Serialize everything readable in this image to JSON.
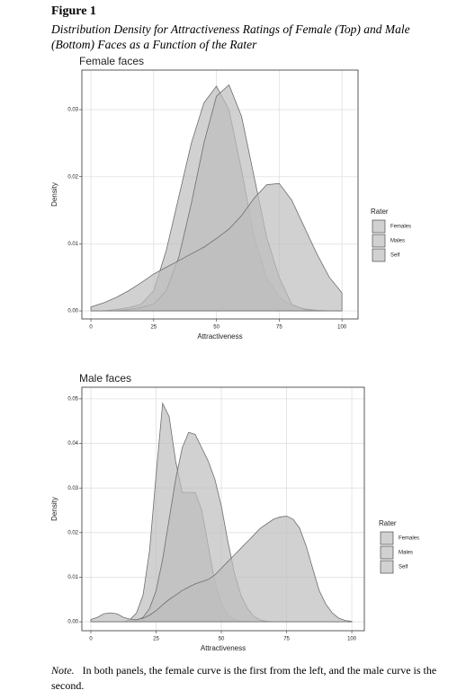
{
  "figure": {
    "label": "Figure 1",
    "caption": "Distribution Density for Attractiveness Ratings of Female (Top) and Male (Bottom) Faces as a Function of the Rater",
    "note_label": "Note.",
    "note": "In both panels, the female curve is the first from the left, and the male curve is the second."
  },
  "chart_data": [
    {
      "type": "area",
      "title": "Female faces",
      "x_label": "Attractiveness",
      "y_label": "Density",
      "legend_title": "Rater",
      "x": [
        0,
        5,
        10,
        15,
        20,
        25,
        30,
        35,
        40,
        45,
        50,
        55,
        60,
        65,
        70,
        75,
        80,
        85,
        90,
        95,
        100
      ],
      "series": [
        {
          "name": "Females",
          "color": "#bdbdbd",
          "values": [
            0,
            0,
            0.0002,
            0.0005,
            0.001,
            0.003,
            0.009,
            0.017,
            0.025,
            0.031,
            0.0335,
            0.03,
            0.021,
            0.011,
            0.005,
            0.002,
            0.0008,
            0.0003,
            0.0001,
            0,
            0
          ]
        },
        {
          "name": "Males",
          "color": "#bdbdbd",
          "values": [
            0,
            0,
            0,
            0.0002,
            0.0005,
            0.001,
            0.003,
            0.008,
            0.016,
            0.025,
            0.032,
            0.0337,
            0.029,
            0.02,
            0.011,
            0.005,
            0.001,
            0.0002,
            0,
            0,
            0
          ]
        },
        {
          "name": "Self",
          "color": "#bdbdbd",
          "values": [
            0.0006,
            0.0012,
            0.002,
            0.003,
            0.0042,
            0.0055,
            0.0065,
            0.0075,
            0.0085,
            0.0095,
            0.0108,
            0.0122,
            0.0142,
            0.0168,
            0.0188,
            0.019,
            0.0165,
            0.0125,
            0.0085,
            0.005,
            0.0027
          ]
        }
      ],
      "xlim": [
        -3.6,
        106.4
      ],
      "ylim": [
        -0.0012,
        0.0359
      ],
      "xticks": [
        0,
        25,
        50,
        75,
        100
      ],
      "yticks": [
        {
          "value": 0,
          "label": "0.00"
        },
        {
          "value": 0.01,
          "label": "0.01"
        },
        {
          "value": 0.02,
          "label": "0.02"
        },
        {
          "value": 0.03,
          "label": "0.03"
        }
      ],
      "grid": true
    },
    {
      "type": "area",
      "title": "Male faces",
      "x_label": "Attractiveness",
      "y_label": "Density",
      "legend_title": "Rater",
      "x": [
        0,
        2.5,
        5,
        7.5,
        10,
        12.5,
        15,
        17.5,
        20,
        22.5,
        25,
        27.5,
        30,
        32.5,
        35,
        37.5,
        40,
        42.5,
        45,
        47.5,
        50,
        52.5,
        55,
        57.5,
        60,
        62.5,
        65,
        67.5,
        70,
        72.5,
        75,
        77.5,
        80,
        82.5,
        85,
        87.5,
        90,
        92.5,
        95,
        97.5,
        100
      ],
      "series": [
        {
          "name": "Females",
          "color": "#bdbdbd",
          "values": [
            0,
            0,
            0,
            0,
            0,
            0,
            0.0005,
            0.002,
            0.006,
            0.016,
            0.033,
            0.049,
            0.046,
            0.036,
            0.029,
            0.029,
            0.029,
            0.025,
            0.017,
            0.009,
            0.004,
            0.0015,
            0.0005,
            0.0001,
            0,
            0,
            0,
            0,
            0,
            0,
            0,
            0,
            0,
            0,
            0,
            0,
            0,
            0,
            0,
            0,
            0
          ]
        },
        {
          "name": "Males",
          "color": "#bdbdbd",
          "values": [
            0,
            0,
            0,
            0,
            0,
            0,
            0,
            0.0003,
            0.001,
            0.003,
            0.007,
            0.014,
            0.023,
            0.032,
            0.039,
            0.0425,
            0.042,
            0.039,
            0.036,
            0.032,
            0.026,
            0.018,
            0.011,
            0.006,
            0.003,
            0.0012,
            0.0004,
            0.0001,
            0,
            0,
            0,
            0,
            0,
            0,
            0,
            0,
            0,
            0,
            0,
            0,
            0
          ]
        },
        {
          "name": "Self",
          "color": "#bdbdbd",
          "values": [
            0.0005,
            0.001,
            0.0018,
            0.002,
            0.0018,
            0.001,
            0.0006,
            0.0005,
            0.0008,
            0.0015,
            0.0025,
            0.0038,
            0.005,
            0.006,
            0.007,
            0.0078,
            0.0085,
            0.009,
            0.0095,
            0.0105,
            0.012,
            0.0135,
            0.015,
            0.0165,
            0.018,
            0.0195,
            0.021,
            0.022,
            0.023,
            0.0235,
            0.0237,
            0.023,
            0.021,
            0.017,
            0.012,
            0.007,
            0.004,
            0.002,
            0.0008,
            0.0003,
            0.0001
          ]
        }
      ],
      "xlim": [
        -3.45,
        104.8
      ],
      "ylim": [
        -0.002,
        0.0526
      ],
      "xticks": [
        0,
        25,
        50,
        75,
        100
      ],
      "yticks": [
        {
          "value": 0,
          "label": "0.00"
        },
        {
          "value": 0.01,
          "label": "0.01"
        },
        {
          "value": 0.02,
          "label": "0.02"
        },
        {
          "value": 0.03,
          "label": "0.03"
        },
        {
          "value": 0.04,
          "label": "0.04"
        },
        {
          "value": 0.05,
          "label": "0.05"
        }
      ],
      "grid": true
    }
  ]
}
